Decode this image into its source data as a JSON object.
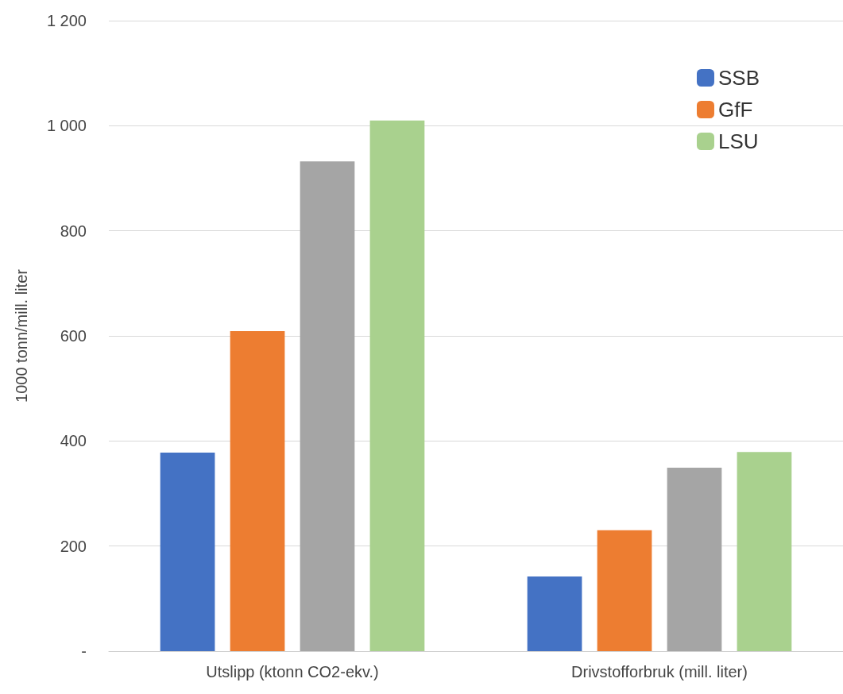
{
  "chart_data": {
    "type": "bar",
    "ylabel": "1000 tonn/mill. liter",
    "categories": [
      "Utslipp (ktonn CO2-ekv.)",
      "Drivstofforbruk (mill. liter)"
    ],
    "series": [
      {
        "name": "SSB",
        "color": "#4472c4",
        "values": [
          378,
          142
        ]
      },
      {
        "name": "GfF",
        "color": "#ed7d31",
        "values": [
          609,
          230
        ]
      },
      {
        "color": "#a5a5a5",
        "values": [
          932,
          349
        ]
      },
      {
        "name": "LSU",
        "color": "#a9d18e",
        "values": [
          1010,
          379
        ]
      }
    ],
    "ylim": [
      0,
      1200
    ],
    "yticks": [
      {
        "value": 0,
        "label": "-"
      },
      200,
      400,
      600,
      800,
      {
        "value": 1000,
        "label": "1 000"
      },
      {
        "value": 1200,
        "label": "1 200"
      }
    ],
    "grid": "y",
    "legend": "top right"
  }
}
